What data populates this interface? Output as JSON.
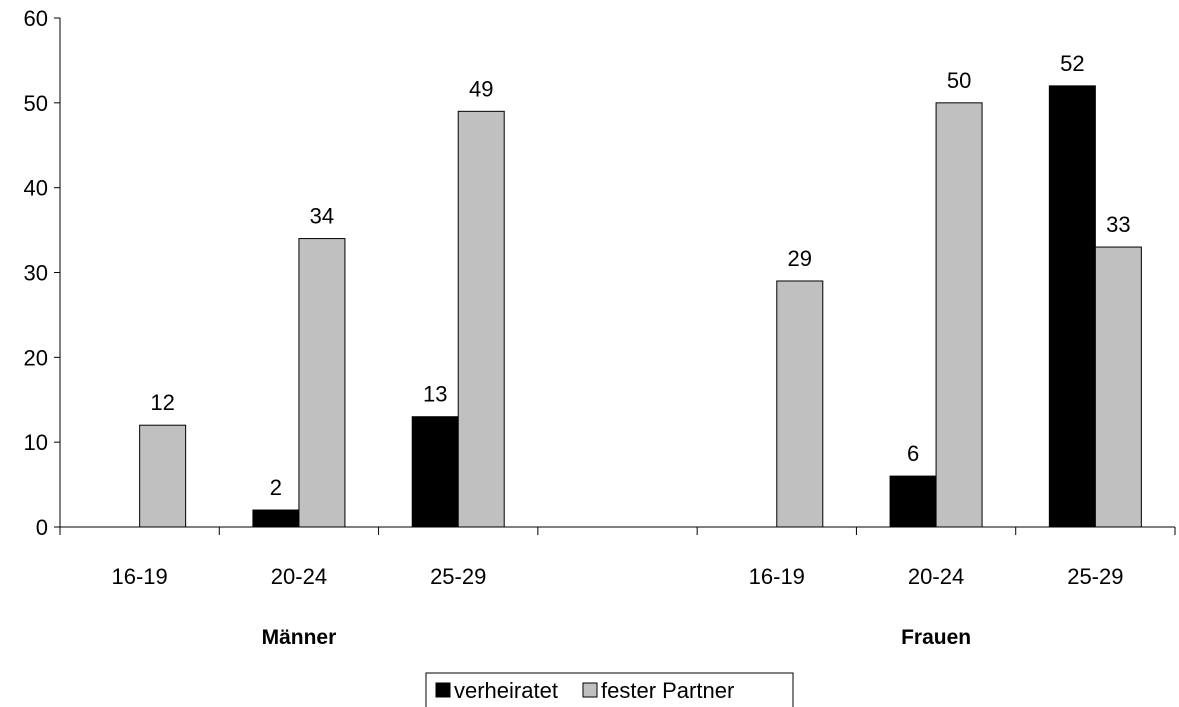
{
  "chart_data": {
    "type": "bar",
    "groups": [
      {
        "label": "Männer",
        "categories": [
          "16-19",
          "20-24",
          "25-29"
        ]
      },
      {
        "label": "Frauen",
        "categories": [
          "16-19",
          "20-24",
          "25-29"
        ]
      }
    ],
    "series": [
      {
        "name": "verheiratet",
        "color": "#000000",
        "values": [
          null,
          2,
          13,
          null,
          6,
          52
        ]
      },
      {
        "name": "fester Partner",
        "color": "#c0c0c0",
        "values": [
          12,
          34,
          49,
          29,
          50,
          33
        ]
      }
    ],
    "ylim": [
      0,
      60
    ],
    "yticks": [
      0,
      10,
      20,
      30,
      40,
      50,
      60
    ],
    "grid": false,
    "legend_position": "bottom"
  }
}
